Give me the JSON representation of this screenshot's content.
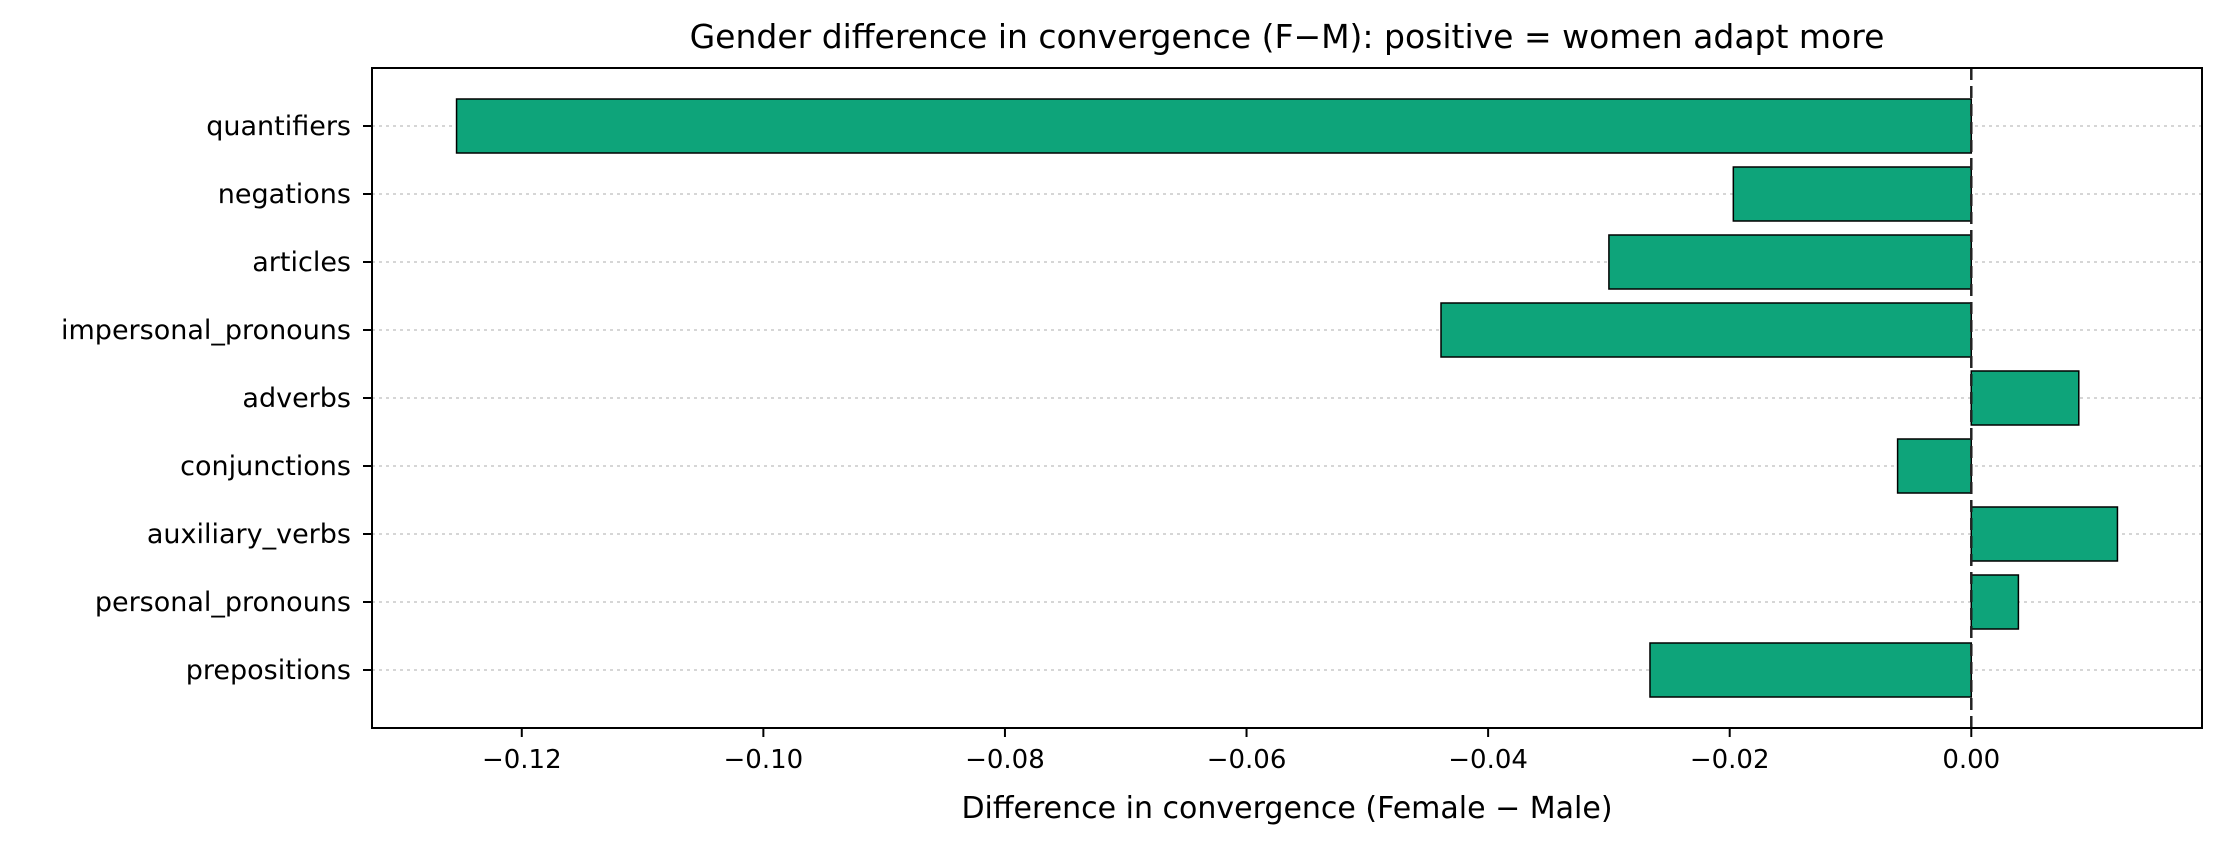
{
  "chart_data": {
    "type": "bar",
    "orientation": "horizontal",
    "title": "Gender difference in convergence (F−M): positive = women adapt more",
    "xlabel": "Difference in convergence (Female − Male)",
    "ylabel": "",
    "categories": [
      "quantifiers",
      "negations",
      "articles",
      "impersonal_pronouns",
      "adverbs",
      "conjunctions",
      "auxiliary_verbs",
      "personal_pronouns",
      "prepositions"
    ],
    "values": [
      -0.1254,
      -0.0197,
      -0.03,
      -0.0439,
      0.0089,
      -0.0061,
      0.0121,
      0.0039,
      -0.0266
    ],
    "xlim": [
      -0.1324,
      0.0191
    ],
    "xticks": [
      -0.12,
      -0.1,
      -0.08,
      -0.06,
      -0.04,
      -0.02,
      0.0
    ],
    "xtick_labels": [
      "−0.12",
      "−0.10",
      "−0.08",
      "−0.06",
      "−0.04",
      "−0.02",
      "0.00"
    ],
    "reference_line": 0,
    "grid": "horizontal dotted",
    "bar_color": "#0ea47a",
    "edge_color": "#000000"
  }
}
